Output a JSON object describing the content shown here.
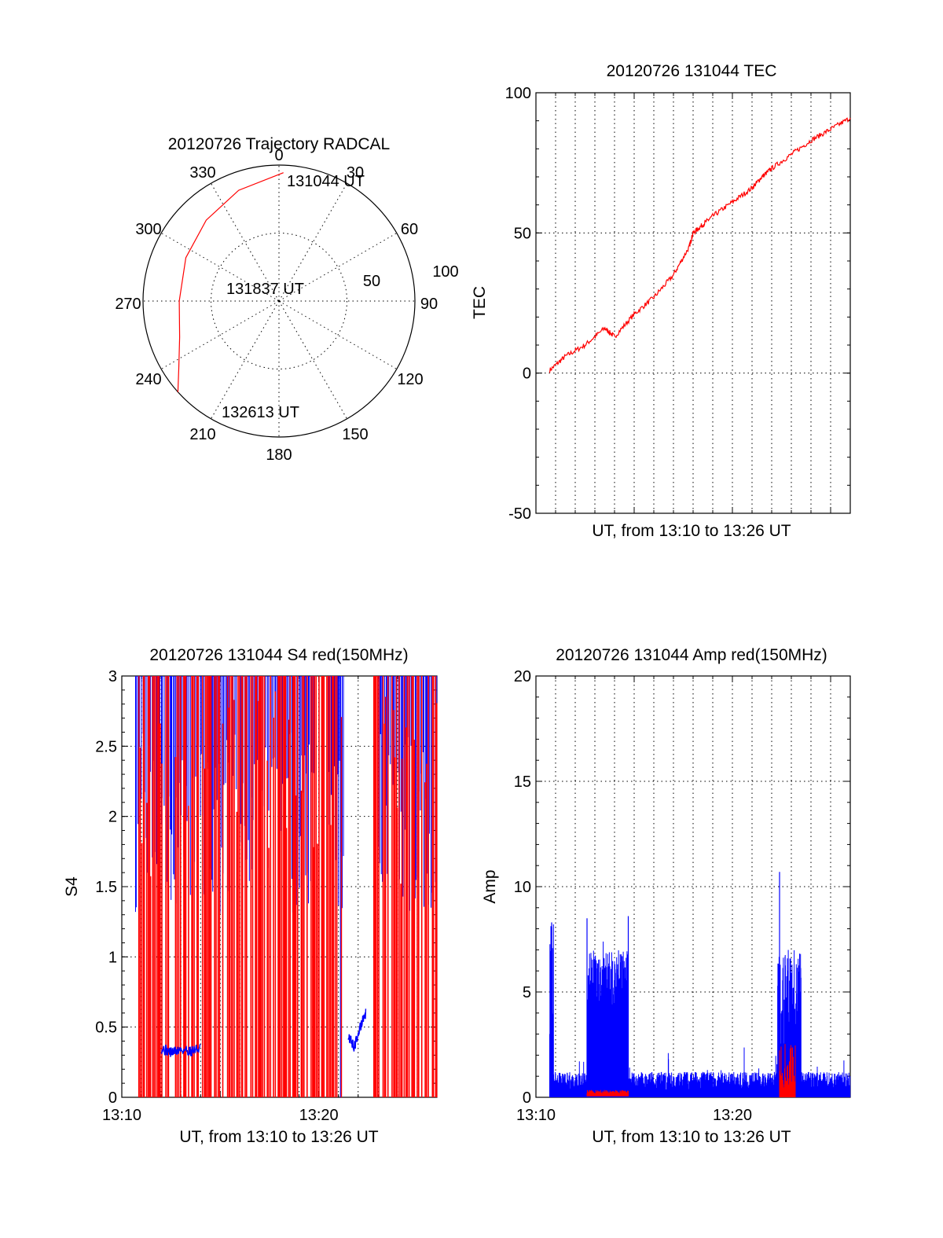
{
  "chart_data": [
    {
      "id": "trajectory",
      "type": "polar",
      "title": "20120726 Trajectory RADCAL",
      "angle_labels": [
        "0",
        "30",
        "60",
        "90",
        "120",
        "150",
        "180",
        "210",
        "240",
        "270",
        "300",
        "330"
      ],
      "radius_labels": [
        "50",
        "100"
      ],
      "point_labels": [
        "131044 UT",
        "131837 UT",
        "132613 UT"
      ],
      "trajectory": [
        {
          "azimuth": 2,
          "zenith": 85
        },
        {
          "azimuth": 340,
          "zenith": 78
        },
        {
          "azimuth": 318,
          "zenith": 72
        },
        {
          "azimuth": 295,
          "zenith": 68
        },
        {
          "azimuth": 270,
          "zenith": 66
        },
        {
          "azimuth": 250,
          "zenith": 70
        },
        {
          "azimuth": 236,
          "zenith": 80
        },
        {
          "azimuth": 228,
          "zenith": 90
        }
      ],
      "color": "#ff0000"
    },
    {
      "id": "tec",
      "type": "line",
      "title": "20120726 131044 TEC",
      "xlabel": "UT, from 13:10 to 13:26 UT",
      "ylabel": "TEC",
      "xlim": [
        0,
        16
      ],
      "ylim": [
        -50,
        100
      ],
      "yticks": [
        "-50",
        "0",
        "50",
        "100"
      ],
      "series": [
        {
          "color": "#ff0000",
          "x": [
            0.7,
            1.5,
            2.5,
            3.5,
            4.0,
            5.0,
            6.0,
            7.0,
            7.8,
            8.0,
            8.5,
            9.0,
            10.0,
            11.0,
            11.5,
            12.0,
            13.0,
            14.0,
            15.0,
            16.0
          ],
          "y": [
            1,
            6,
            10,
            16,
            13,
            21,
            27,
            35,
            45,
            50,
            53,
            56,
            61,
            66,
            70,
            73,
            78,
            83,
            87,
            91
          ]
        }
      ]
    },
    {
      "id": "s4",
      "type": "line",
      "title": "20120726 131044 S4 red(150MHz)",
      "xlabel": "UT, from 13:10 to 13:26 UT",
      "ylabel": "S4",
      "xlim": [
        0,
        16
      ],
      "ylim": [
        0,
        3
      ],
      "xticks": [
        "13:10",
        "13:20"
      ],
      "yticks": [
        "0",
        "0.5",
        "1",
        "1.5",
        "2",
        "2.5",
        "3"
      ],
      "series": [
        {
          "color": "#0000ff",
          "x": [
            2.0,
            2.5,
            3.0,
            3.5,
            4.0
          ],
          "y": [
            0.35,
            0.32,
            0.34,
            0.33,
            0.35
          ]
        },
        {
          "color": "#0000ff",
          "x": [
            11.5,
            11.8,
            12.1,
            12.4
          ],
          "y": [
            0.45,
            0.35,
            0.5,
            0.6
          ]
        }
      ]
    },
    {
      "id": "amp",
      "type": "line",
      "title": "20120726 131044 Amp red(150MHz)",
      "xlabel": "UT, from 13:10 to 13:26 UT",
      "ylabel": "Amp",
      "xlim": [
        0,
        16
      ],
      "ylim": [
        0,
        20
      ],
      "xticks": [
        "13:10",
        "13:20"
      ],
      "yticks": [
        "0",
        "5",
        "10",
        "15",
        "20"
      ],
      "series": [
        {
          "color": "#0000ff",
          "x": [
            0.8,
            2.6,
            4.7,
            12.4,
            13.4
          ],
          "y": [
            8.3,
            8.5,
            8.6,
            10.7,
            4.0
          ]
        },
        {
          "color": "#ff0000",
          "x": [
            2.6,
            4.7,
            12.6
          ],
          "y": [
            0.3,
            0.3,
            2.6
          ]
        }
      ]
    }
  ]
}
